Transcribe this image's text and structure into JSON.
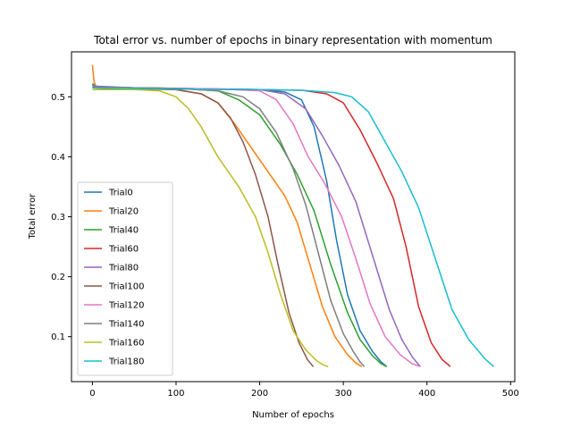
{
  "chart_data": {
    "type": "line",
    "title": "Total error vs. number of epochs in binary representation with momentum",
    "xlabel": "Number of epochs",
    "ylabel": "Total error",
    "xlim": [
      -25,
      505
    ],
    "ylim": [
      0.025,
      0.575
    ],
    "xticks": [
      0,
      100,
      200,
      300,
      400,
      500
    ],
    "yticks": [
      0.1,
      0.2,
      0.3,
      0.4,
      0.5
    ],
    "ytick_labels": [
      "0.1",
      "0.2",
      "0.3",
      "0.4",
      "0.5"
    ],
    "xtick_labels": [
      "0",
      "100",
      "200",
      "300",
      "400",
      "500"
    ],
    "legend_position": "lower-left",
    "grid": false,
    "series": [
      {
        "name": "Trial0",
        "color": "#1f77b4",
        "points": [
          [
            0,
            0.522
          ],
          [
            5,
            0.516
          ],
          [
            50,
            0.515
          ],
          [
            100,
            0.514
          ],
          [
            150,
            0.513
          ],
          [
            200,
            0.512
          ],
          [
            230,
            0.508
          ],
          [
            250,
            0.495
          ],
          [
            265,
            0.45
          ],
          [
            280,
            0.36
          ],
          [
            292,
            0.26
          ],
          [
            305,
            0.17
          ],
          [
            320,
            0.11
          ],
          [
            335,
            0.075
          ],
          [
            345,
            0.058
          ],
          [
            352,
            0.05
          ]
        ]
      },
      {
        "name": "Trial20",
        "color": "#ff7f0e",
        "points": [
          [
            0,
            0.553
          ],
          [
            2,
            0.525
          ],
          [
            5,
            0.515
          ],
          [
            50,
            0.513
          ],
          [
            100,
            0.512
          ],
          [
            130,
            0.505
          ],
          [
            150,
            0.49
          ],
          [
            170,
            0.455
          ],
          [
            190,
            0.415
          ],
          [
            210,
            0.375
          ],
          [
            230,
            0.335
          ],
          [
            245,
            0.29
          ],
          [
            260,
            0.22
          ],
          [
            275,
            0.15
          ],
          [
            290,
            0.1
          ],
          [
            305,
            0.07
          ],
          [
            315,
            0.056
          ],
          [
            322,
            0.05
          ]
        ]
      },
      {
        "name": "Trial40",
        "color": "#2ca02c",
        "points": [
          [
            0,
            0.52
          ],
          [
            5,
            0.516
          ],
          [
            50,
            0.515
          ],
          [
            100,
            0.514
          ],
          [
            150,
            0.51
          ],
          [
            175,
            0.495
          ],
          [
            200,
            0.47
          ],
          [
            225,
            0.42
          ],
          [
            245,
            0.37
          ],
          [
            265,
            0.31
          ],
          [
            285,
            0.22
          ],
          [
            305,
            0.14
          ],
          [
            320,
            0.095
          ],
          [
            335,
            0.068
          ],
          [
            345,
            0.055
          ],
          [
            352,
            0.05
          ]
        ]
      },
      {
        "name": "Trial60",
        "color": "#d62728",
        "points": [
          [
            0,
            0.515
          ],
          [
            50,
            0.514
          ],
          [
            100,
            0.514
          ],
          [
            150,
            0.513
          ],
          [
            200,
            0.512
          ],
          [
            250,
            0.511
          ],
          [
            280,
            0.505
          ],
          [
            300,
            0.49
          ],
          [
            320,
            0.445
          ],
          [
            340,
            0.39
          ],
          [
            360,
            0.33
          ],
          [
            375,
            0.25
          ],
          [
            390,
            0.15
          ],
          [
            405,
            0.09
          ],
          [
            418,
            0.062
          ],
          [
            428,
            0.05
          ]
        ]
      },
      {
        "name": "Trial80",
        "color": "#9467bd",
        "points": [
          [
            0,
            0.518
          ],
          [
            50,
            0.515
          ],
          [
            100,
            0.514
          ],
          [
            150,
            0.513
          ],
          [
            200,
            0.512
          ],
          [
            230,
            0.505
          ],
          [
            255,
            0.48
          ],
          [
            275,
            0.435
          ],
          [
            295,
            0.385
          ],
          [
            315,
            0.325
          ],
          [
            335,
            0.235
          ],
          [
            355,
            0.145
          ],
          [
            370,
            0.095
          ],
          [
            383,
            0.065
          ],
          [
            392,
            0.05
          ]
        ]
      },
      {
        "name": "Trial100",
        "color": "#8c564b",
        "points": [
          [
            0,
            0.515
          ],
          [
            50,
            0.514
          ],
          [
            100,
            0.512
          ],
          [
            130,
            0.505
          ],
          [
            150,
            0.49
          ],
          [
            165,
            0.465
          ],
          [
            180,
            0.425
          ],
          [
            195,
            0.37
          ],
          [
            210,
            0.3
          ],
          [
            222,
            0.22
          ],
          [
            235,
            0.14
          ],
          [
            247,
            0.09
          ],
          [
            257,
            0.062
          ],
          [
            264,
            0.05
          ]
        ]
      },
      {
        "name": "Trial120",
        "color": "#e377c2",
        "points": [
          [
            0,
            0.516
          ],
          [
            50,
            0.515
          ],
          [
            100,
            0.514
          ],
          [
            150,
            0.513
          ],
          [
            200,
            0.51
          ],
          [
            220,
            0.495
          ],
          [
            240,
            0.455
          ],
          [
            258,
            0.4
          ],
          [
            278,
            0.355
          ],
          [
            298,
            0.3
          ],
          [
            315,
            0.23
          ],
          [
            332,
            0.155
          ],
          [
            350,
            0.1
          ],
          [
            368,
            0.07
          ],
          [
            382,
            0.055
          ],
          [
            392,
            0.05
          ]
        ]
      },
      {
        "name": "Trial140",
        "color": "#7f7f7f",
        "points": [
          [
            0,
            0.516
          ],
          [
            50,
            0.515
          ],
          [
            100,
            0.514
          ],
          [
            150,
            0.51
          ],
          [
            180,
            0.5
          ],
          [
            200,
            0.48
          ],
          [
            220,
            0.44
          ],
          [
            240,
            0.38
          ],
          [
            255,
            0.32
          ],
          [
            270,
            0.24
          ],
          [
            285,
            0.16
          ],
          [
            300,
            0.105
          ],
          [
            312,
            0.075
          ],
          [
            320,
            0.058
          ],
          [
            325,
            0.05
          ]
        ]
      },
      {
        "name": "Trial160",
        "color": "#bcbd22",
        "points": [
          [
            0,
            0.512
          ],
          [
            50,
            0.512
          ],
          [
            80,
            0.51
          ],
          [
            100,
            0.5
          ],
          [
            115,
            0.48
          ],
          [
            130,
            0.45
          ],
          [
            150,
            0.4
          ],
          [
            175,
            0.35
          ],
          [
            195,
            0.3
          ],
          [
            210,
            0.24
          ],
          [
            225,
            0.17
          ],
          [
            240,
            0.11
          ],
          [
            255,
            0.078
          ],
          [
            268,
            0.06
          ],
          [
            276,
            0.053
          ],
          [
            282,
            0.05
          ]
        ]
      },
      {
        "name": "Trial180",
        "color": "#17becf",
        "points": [
          [
            0,
            0.515
          ],
          [
            50,
            0.514
          ],
          [
            100,
            0.513
          ],
          [
            150,
            0.512
          ],
          [
            200,
            0.512
          ],
          [
            250,
            0.511
          ],
          [
            290,
            0.507
          ],
          [
            310,
            0.5
          ],
          [
            330,
            0.475
          ],
          [
            350,
            0.425
          ],
          [
            370,
            0.375
          ],
          [
            390,
            0.315
          ],
          [
            410,
            0.23
          ],
          [
            430,
            0.145
          ],
          [
            450,
            0.095
          ],
          [
            470,
            0.062
          ],
          [
            480,
            0.05
          ]
        ]
      }
    ]
  }
}
